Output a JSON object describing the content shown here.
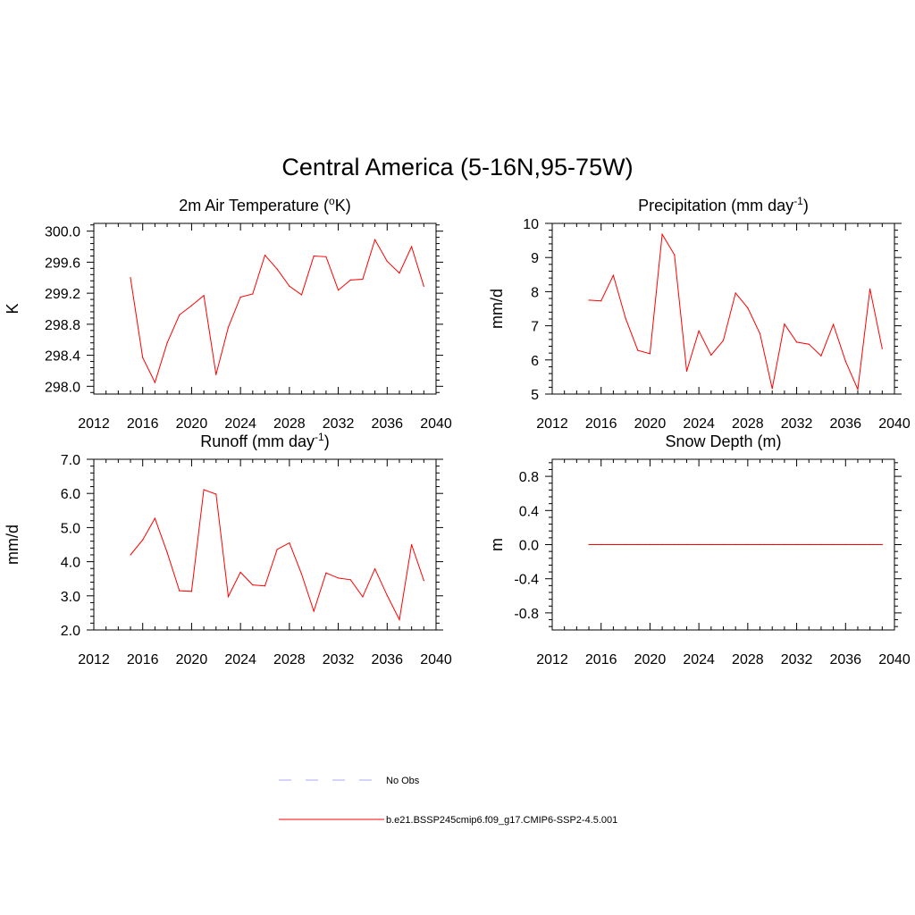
{
  "title": "Central America (5-16N,95-75W)",
  "legend": {
    "placement": "bottom",
    "entries": [
      {
        "label": "No Obs",
        "color": "#aaaaff",
        "dash": "dashed"
      },
      {
        "label": "b.e21.BSSP245cmip6.f09_g17.CMIP6-SSP2-4.5.001",
        "color": "#ff0000",
        "dash": "solid"
      }
    ]
  },
  "chart_data": [
    {
      "type": "line",
      "title": "2m Air Temperature (",
      "title_sup": "o",
      "title_after": "K)",
      "ylabel": "K",
      "xlim": [
        2012,
        2040
      ],
      "xticks": [
        2012,
        2016,
        2020,
        2024,
        2028,
        2032,
        2036,
        2040
      ],
      "ylim": [
        297.9,
        300.1
      ],
      "yticks": [
        298.0,
        298.4,
        298.8,
        299.2,
        299.6,
        300.0
      ],
      "ytick_labels": [
        "298.0",
        "298.4",
        "298.8",
        "299.2",
        "299.6",
        "300.0"
      ],
      "series": [
        {
          "color": "#ff0000",
          "x": [
            2015,
            2016,
            2017,
            2018,
            2019,
            2020,
            2021,
            2022,
            2023,
            2024,
            2025,
            2026,
            2027,
            2028,
            2029,
            2030,
            2031,
            2032,
            2033,
            2034,
            2035,
            2036,
            2037,
            2038,
            2039
          ],
          "values": [
            299.4,
            298.37,
            298.05,
            298.56,
            298.92,
            299.04,
            299.17,
            298.15,
            298.76,
            299.15,
            299.19,
            299.69,
            299.51,
            299.29,
            299.18,
            299.68,
            299.67,
            299.24,
            299.37,
            299.38,
            299.89,
            299.61,
            299.46,
            299.8,
            299.29
          ]
        }
      ]
    },
    {
      "type": "line",
      "title": "Precipitation (mm day",
      "title_sup": "-1",
      "title_after": ")",
      "ylabel": "mm/d",
      "xlim": [
        2012,
        2040
      ],
      "xticks": [
        2012,
        2016,
        2020,
        2024,
        2028,
        2032,
        2036,
        2040
      ],
      "ylim": [
        5,
        10
      ],
      "yticks": [
        5,
        6,
        7,
        8,
        9,
        10
      ],
      "ytick_labels": [
        "5",
        "6",
        "7",
        "8",
        "9",
        "10"
      ],
      "series": [
        {
          "color": "#ff0000",
          "x": [
            2015,
            2016,
            2017,
            2018,
            2019,
            2020,
            2021,
            2022,
            2023,
            2024,
            2025,
            2026,
            2027,
            2028,
            2029,
            2030,
            2031,
            2032,
            2033,
            2034,
            2035,
            2036,
            2037,
            2038,
            2039
          ],
          "values": [
            7.75,
            7.73,
            8.48,
            7.22,
            6.28,
            6.18,
            9.68,
            9.08,
            5.67,
            6.85,
            6.14,
            6.57,
            7.96,
            7.52,
            6.77,
            5.16,
            7.05,
            6.52,
            6.46,
            6.12,
            7.04,
            5.96,
            5.14,
            8.08,
            6.33
          ]
        }
      ]
    },
    {
      "type": "line",
      "title": "Runoff (mm day",
      "title_sup": "-1",
      "title_after": ")",
      "ylabel": "mm/d",
      "xlim": [
        2012,
        2040
      ],
      "xticks": [
        2012,
        2016,
        2020,
        2024,
        2028,
        2032,
        2036,
        2040
      ],
      "ylim": [
        2.0,
        7.0
      ],
      "yticks": [
        2.0,
        3.0,
        4.0,
        5.0,
        6.0,
        7.0
      ],
      "ytick_labels": [
        "2.0",
        "3.0",
        "4.0",
        "5.0",
        "6.0",
        "7.0"
      ],
      "series": [
        {
          "color": "#ff0000",
          "x": [
            2015,
            2016,
            2017,
            2018,
            2019,
            2020,
            2021,
            2022,
            2023,
            2024,
            2025,
            2026,
            2027,
            2028,
            2029,
            2030,
            2031,
            2032,
            2033,
            2034,
            2035,
            2036,
            2037,
            2038,
            2039
          ],
          "values": [
            4.2,
            4.64,
            5.27,
            4.27,
            3.15,
            3.13,
            6.11,
            5.98,
            2.98,
            3.69,
            3.32,
            3.29,
            4.36,
            4.55,
            3.64,
            2.55,
            3.67,
            3.52,
            3.47,
            2.97,
            3.79,
            3.01,
            2.3,
            4.5,
            3.45
          ]
        }
      ]
    },
    {
      "type": "line",
      "title": "Snow Depth (m)",
      "title_sup": "",
      "title_after": "",
      "ylabel": "m",
      "xlim": [
        2012,
        2040
      ],
      "xticks": [
        2012,
        2016,
        2020,
        2024,
        2028,
        2032,
        2036,
        2040
      ],
      "ylim": [
        -1.0,
        1.0
      ],
      "yticks": [
        -0.8,
        -0.4,
        0.0,
        0.4,
        0.8
      ],
      "ytick_labels": [
        "-0.8",
        "-0.4",
        "0.0",
        "0.4",
        "0.8"
      ],
      "series": [
        {
          "color": "#ff0000",
          "x": [
            2015,
            2016,
            2017,
            2018,
            2019,
            2020,
            2021,
            2022,
            2023,
            2024,
            2025,
            2026,
            2027,
            2028,
            2029,
            2030,
            2031,
            2032,
            2033,
            2034,
            2035,
            2036,
            2037,
            2038,
            2039
          ],
          "values": [
            0,
            0,
            0,
            0,
            0,
            0,
            0,
            0,
            0,
            0,
            0,
            0,
            0,
            0,
            0,
            0,
            0,
            0,
            0,
            0,
            0,
            0,
            0,
            0,
            0
          ]
        }
      ]
    }
  ]
}
